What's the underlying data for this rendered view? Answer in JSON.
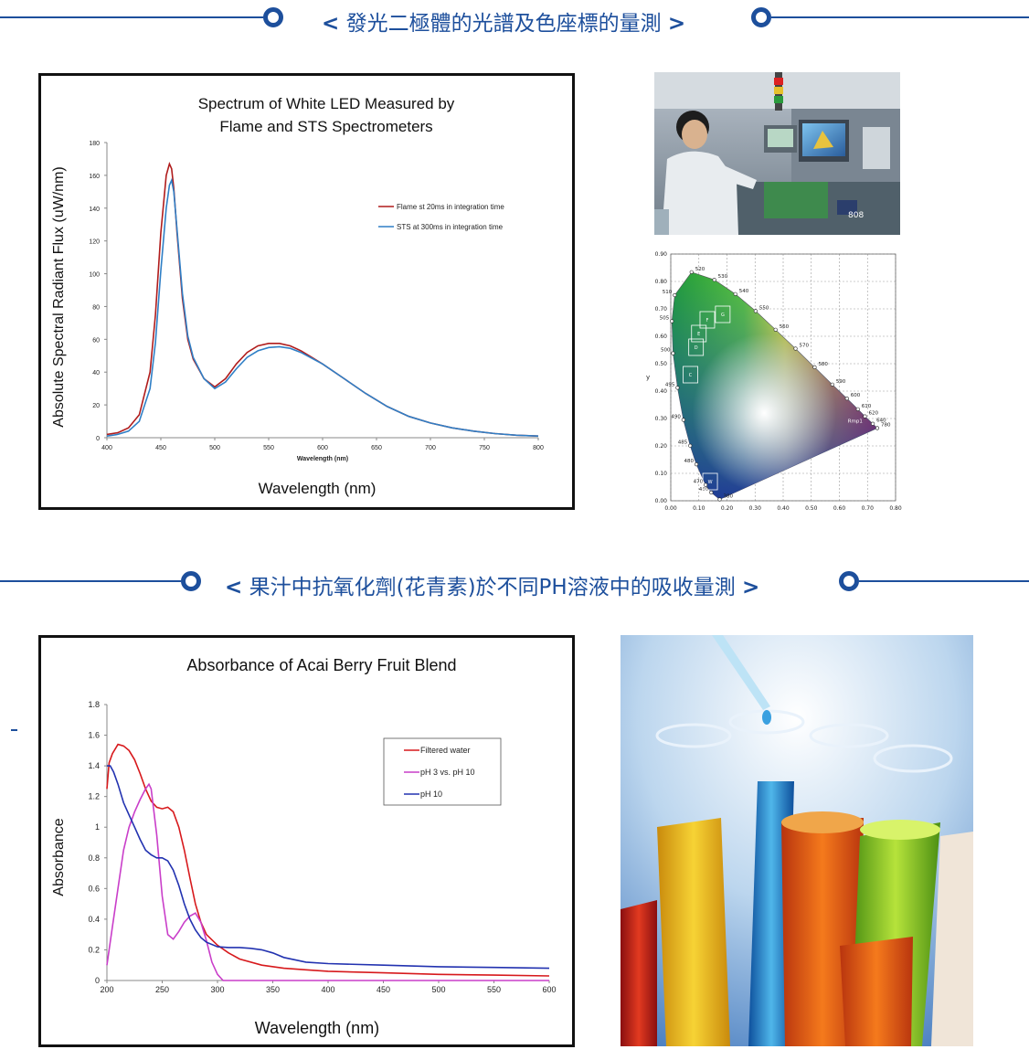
{
  "section1": {
    "title": "發光二極體的光譜及色座標的量測",
    "lt": "<",
    "gt": ">"
  },
  "section2": {
    "title": "果汁中抗氧化劑(花青素)於不同PH溶液中的吸收量測",
    "lt": "<",
    "gt": ">"
  },
  "chart_data": [
    {
      "type": "line",
      "title": "Spectrum of White LED Measured by",
      "subtitle": "Flame and STS Spectrometers",
      "xlabel": "Wavelength (nm)",
      "xlabel_small": "Wavelength (nm)",
      "ylabel": "Absolute Spectral Radiant Flux (uW/nm)",
      "xlim": [
        400,
        800
      ],
      "ylim": [
        0,
        180
      ],
      "xticks": [
        400,
        450,
        500,
        550,
        600,
        650,
        700,
        750,
        800
      ],
      "yticks": [
        0,
        20,
        40,
        60,
        80,
        100,
        120,
        140,
        160,
        180
      ],
      "legend_position": "top-right",
      "series": [
        {
          "name": "Flame st 20ms in integration time",
          "color": "#b01c1c",
          "x": [
            400,
            410,
            420,
            430,
            440,
            445,
            450,
            455,
            458,
            460,
            462,
            465,
            470,
            475,
            480,
            490,
            500,
            510,
            520,
            530,
            540,
            550,
            560,
            570,
            580,
            590,
            600,
            620,
            640,
            660,
            680,
            700,
            720,
            740,
            760,
            780,
            800
          ],
          "y": [
            2,
            3,
            6,
            14,
            40,
            75,
            125,
            160,
            167,
            164,
            152,
            125,
            85,
            60,
            48,
            36,
            31,
            36,
            45,
            52,
            56,
            57.5,
            57.5,
            56,
            53,
            49,
            45,
            36,
            27,
            19,
            13,
            9,
            6,
            4,
            2.5,
            1.5,
            1
          ]
        },
        {
          "name": "STS at 300ms in integration time",
          "color": "#2f7fc6",
          "x": [
            400,
            410,
            420,
            430,
            440,
            445,
            450,
            455,
            458,
            460,
            462,
            465,
            470,
            475,
            480,
            490,
            500,
            510,
            520,
            530,
            540,
            550,
            560,
            570,
            580,
            590,
            600,
            620,
            640,
            660,
            680,
            700,
            720,
            740,
            760,
            780,
            800
          ],
          "y": [
            1,
            2,
            4,
            10,
            30,
            58,
            102,
            140,
            154,
            157,
            150,
            127,
            88,
            62,
            49,
            36,
            30,
            34,
            42,
            49,
            53,
            55,
            55.5,
            54.5,
            52,
            48.5,
            45,
            36,
            27,
            19,
            13,
            9,
            6,
            4,
            2.5,
            1.5,
            1
          ]
        }
      ]
    },
    {
      "type": "scatter",
      "title": "",
      "xlabel": "",
      "ylabel": "y",
      "xlim": [
        0,
        0.8
      ],
      "ylim": [
        0,
        0.9
      ],
      "xticks": [
        "0.00",
        "0.10",
        "0.20",
        "0.30",
        "0.40",
        "0.50",
        "0.60",
        "0.70",
        "0.80"
      ],
      "yticks": [
        "0.00",
        "0.10",
        "0.20",
        "0.30",
        "0.40",
        "0.50",
        "0.60",
        "0.70",
        "0.80",
        "0.90"
      ],
      "grid": true,
      "locus_labels": [
        {
          "t": "520",
          "x": 0.074,
          "y": 0.834
        },
        {
          "t": "530",
          "x": 0.155,
          "y": 0.806
        },
        {
          "t": "540",
          "x": 0.23,
          "y": 0.754
        },
        {
          "t": "550",
          "x": 0.302,
          "y": 0.692
        },
        {
          "t": "560",
          "x": 0.373,
          "y": 0.624
        },
        {
          "t": "570",
          "x": 0.444,
          "y": 0.555
        },
        {
          "t": "580",
          "x": 0.512,
          "y": 0.487
        },
        {
          "t": "590",
          "x": 0.575,
          "y": 0.424
        },
        {
          "t": "600",
          "x": 0.627,
          "y": 0.373
        },
        {
          "t": "610",
          "x": 0.666,
          "y": 0.334
        },
        {
          "t": "620",
          "x": 0.691,
          "y": 0.308
        },
        {
          "t": "640",
          "x": 0.719,
          "y": 0.281
        },
        {
          "t": "780",
          "x": 0.735,
          "y": 0.265
        },
        {
          "t": "510",
          "x": 0.014,
          "y": 0.75
        },
        {
          "t": "505",
          "x": 0.004,
          "y": 0.655
        },
        {
          "t": "500",
          "x": 0.008,
          "y": 0.538
        },
        {
          "t": "495",
          "x": 0.024,
          "y": 0.412
        },
        {
          "t": "490",
          "x": 0.045,
          "y": 0.295
        },
        {
          "t": "485",
          "x": 0.069,
          "y": 0.201
        },
        {
          "t": "480",
          "x": 0.091,
          "y": 0.133
        },
        {
          "t": "470",
          "x": 0.124,
          "y": 0.058
        },
        {
          "t": "460",
          "x": 0.144,
          "y": 0.03
        },
        {
          "t": "380",
          "x": 0.174,
          "y": 0.005
        }
      ],
      "regions": [
        "G",
        "F",
        "E",
        "D",
        "C",
        "W"
      ],
      "annotation": "Rmp1"
    },
    {
      "type": "line",
      "title": "Absorbance of Acai Berry Fruit Blend",
      "xlabel": "Wavelength (nm)",
      "ylabel": "Absorbance",
      "xlim": [
        200,
        600
      ],
      "ylim": [
        0,
        1.8
      ],
      "xticks": [
        200,
        250,
        300,
        350,
        400,
        450,
        500,
        550,
        600
      ],
      "yticks": [
        "0",
        "0.2",
        "0.4",
        "0.6",
        "0.8",
        "1",
        "1.2",
        "1.4",
        "1.6",
        "1.8"
      ],
      "legend_position": "top-right",
      "series": [
        {
          "name": "Filtered water",
          "color": "#d7191c",
          "x": [
            200,
            202,
            205,
            210,
            215,
            220,
            225,
            230,
            235,
            240,
            245,
            250,
            255,
            260,
            265,
            270,
            275,
            280,
            285,
            290,
            300,
            310,
            320,
            340,
            360,
            380,
            400,
            450,
            500,
            550,
            600
          ],
          "y": [
            1.25,
            1.42,
            1.48,
            1.54,
            1.53,
            1.5,
            1.44,
            1.35,
            1.25,
            1.17,
            1.13,
            1.12,
            1.13,
            1.1,
            1.0,
            0.85,
            0.67,
            0.5,
            0.38,
            0.3,
            0.23,
            0.18,
            0.14,
            0.1,
            0.08,
            0.07,
            0.06,
            0.05,
            0.04,
            0.035,
            0.03
          ]
        },
        {
          "name": "pH 3 vs. pH 10",
          "color": "#c93ec9",
          "x": [
            200,
            205,
            210,
            215,
            220,
            225,
            230,
            235,
            238,
            240,
            245,
            250,
            255,
            260,
            265,
            270,
            275,
            280,
            285,
            290,
            295,
            300,
            305,
            320,
            400,
            500,
            600
          ],
          "y": [
            0.1,
            0.35,
            0.6,
            0.85,
            1.0,
            1.1,
            1.18,
            1.25,
            1.28,
            1.25,
            0.95,
            0.55,
            0.3,
            0.27,
            0.32,
            0.38,
            0.42,
            0.44,
            0.38,
            0.26,
            0.12,
            0.04,
            0.0,
            0.0,
            0.0,
            0.0,
            0.0
          ]
        },
        {
          "name": "pH 10",
          "color": "#2232b0",
          "x": [
            200,
            203,
            206,
            210,
            215,
            220,
            225,
            230,
            235,
            240,
            245,
            250,
            255,
            260,
            265,
            270,
            275,
            280,
            285,
            290,
            300,
            310,
            320,
            330,
            340,
            350,
            360,
            380,
            400,
            450,
            500,
            550,
            600
          ],
          "y": [
            1.4,
            1.4,
            1.36,
            1.28,
            1.16,
            1.08,
            1.0,
            0.92,
            0.85,
            0.82,
            0.8,
            0.8,
            0.78,
            0.72,
            0.62,
            0.5,
            0.4,
            0.33,
            0.28,
            0.25,
            0.22,
            0.215,
            0.215,
            0.21,
            0.2,
            0.18,
            0.15,
            0.12,
            0.11,
            0.1,
            0.09,
            0.085,
            0.08
          ]
        }
      ]
    }
  ],
  "colors": {
    "accent": "#1d4f9c"
  },
  "images": {
    "photo_operator": "operator-at-measurement-station",
    "photo_tubes": "colored-test-tubes-with-pipette"
  }
}
